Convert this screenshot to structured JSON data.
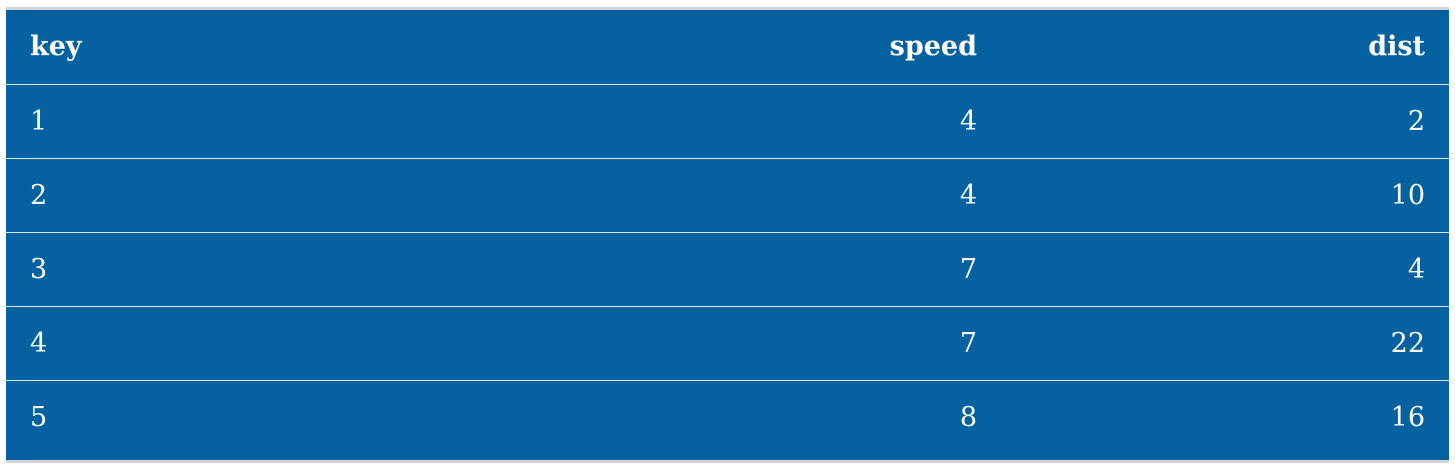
{
  "table": {
    "headers": {
      "key": "key",
      "speed": "speed",
      "dist": "dist"
    },
    "rows": [
      {
        "key": "1",
        "speed": "4",
        "dist": "2"
      },
      {
        "key": "2",
        "speed": "4",
        "dist": "10"
      },
      {
        "key": "3",
        "speed": "7",
        "dist": "4"
      },
      {
        "key": "4",
        "speed": "7",
        "dist": "22"
      },
      {
        "key": "5",
        "speed": "8",
        "dist": "16"
      }
    ]
  },
  "colors": {
    "background": "#0561a0",
    "text": "#ffffff",
    "divider": "#dfe8ef",
    "outer_border": "#cfd3d8"
  }
}
